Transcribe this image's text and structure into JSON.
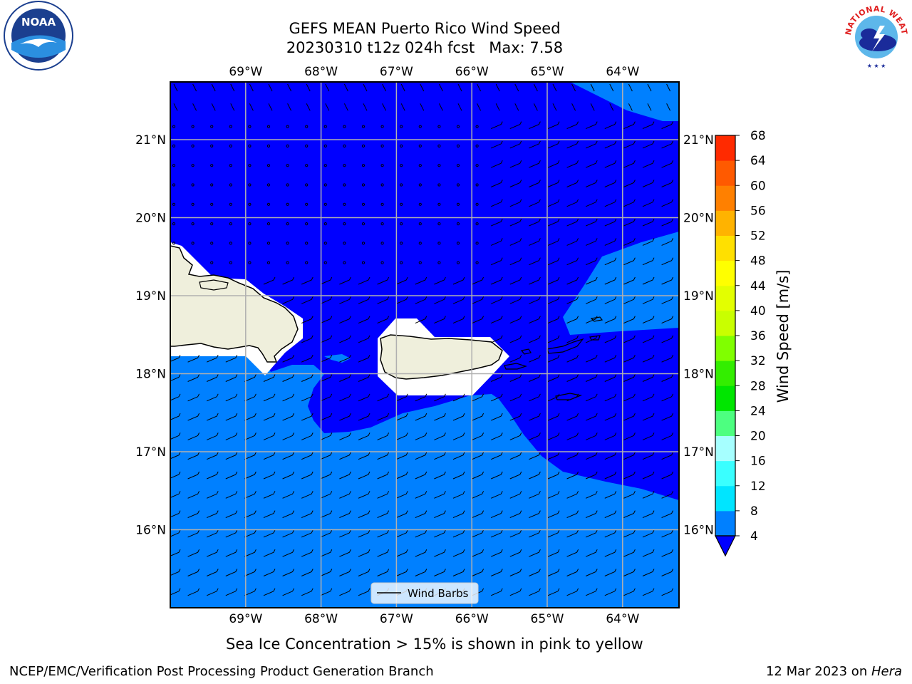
{
  "header": {
    "title": "GEFS MEAN Puerto Rico Wind Speed",
    "subtitle": "20230310 t12z 024h fcst   Max: 7.58"
  },
  "logos": {
    "left": {
      "icon": "noaa-logo-icon",
      "text": "NOAA"
    },
    "right": {
      "icon": "nws-logo-icon",
      "text": "NATIONAL WEATHER SERVICE"
    }
  },
  "map": {
    "lon_ticks": [
      "69°W",
      "68°W",
      "67°W",
      "66°W",
      "65°W",
      "64°W"
    ],
    "lat_ticks": [
      "21°N",
      "20°N",
      "19°N",
      "18°N",
      "17°N",
      "16°N"
    ],
    "legend_label": "Wind Barbs",
    "colors": {
      "land": "#efefdc",
      "band_4_8": "#0080ff",
      "band_below_4": "#0000ff",
      "grid": "#b0b0b0"
    }
  },
  "colorbar": {
    "label": "Wind Speed [m/s]",
    "ticks": [
      "68",
      "64",
      "60",
      "56",
      "52",
      "48",
      "44",
      "40",
      "36",
      "32",
      "28",
      "24",
      "20",
      "16",
      "12",
      "8",
      "4"
    ],
    "colors": [
      "#0080ff",
      "#00e5ff",
      "#3affff",
      "#a6ffff",
      "#4dff80",
      "#00e600",
      "#33ee00",
      "#80ff00",
      "#c9ff00",
      "#e3ff00",
      "#ffff00",
      "#ffe000",
      "#ffb300",
      "#ff8000",
      "#ff5a00",
      "#ff2a00"
    ],
    "extend_color": "#0000ff"
  },
  "caption": "Sea Ice Concentration > 15% is shown in pink to yellow",
  "footer": {
    "left": "NCEP/EMC/Verification Post Processing Product Generation Branch",
    "right_prefix": "12 Mar 2023 on ",
    "right_italic": "Hera"
  }
}
